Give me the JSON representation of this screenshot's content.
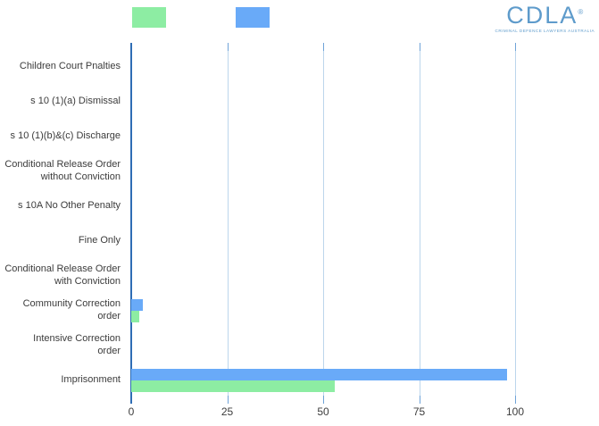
{
  "logo": {
    "text": "CDLA",
    "registered": "®",
    "subtext": "CRIMINAL DEFENCE LAWYERS AUSTRALIA",
    "color": "#5e9bcb"
  },
  "legend": {
    "items": [
      {
        "label": "",
        "color": "#8deda3"
      },
      {
        "label": "",
        "color": "#69aaf8"
      }
    ]
  },
  "chart_data": {
    "type": "bar",
    "orientation": "horizontal",
    "title": "",
    "xlabel": "",
    "ylabel": "",
    "categories": [
      "Children Court Pnalties",
      "s 10 (1)(a) Dismissal",
      "s 10 (1)(b)&(c) Discharge",
      "Conditional Release Order\nwithout Conviction",
      "s 10A No Other Penalty",
      "Fine Only",
      "Conditional Release Order\nwith Conviction",
      "Community Correction\norder",
      "Intensive Correction\norder",
      "Imprisonment"
    ],
    "series": [
      {
        "name": "blue-series",
        "label": "",
        "color": "#69aaf8",
        "values": [
          0,
          0,
          0,
          0,
          0,
          0,
          0,
          3,
          0,
          98
        ]
      },
      {
        "name": "green-series",
        "label": "",
        "color": "#8deda3",
        "values": [
          0,
          0,
          0,
          0,
          0,
          0,
          0,
          2,
          0,
          53
        ]
      }
    ],
    "x_ticks": [
      0,
      25,
      50,
      75,
      100
    ],
    "xlim": [
      0,
      105
    ],
    "grid": "vertical",
    "legend_position": "top",
    "colors": {
      "axis": "#2f6db5",
      "gridline": "#bcd6ec",
      "tick": "#6fa3d8",
      "label": "#3b3b3b"
    }
  }
}
